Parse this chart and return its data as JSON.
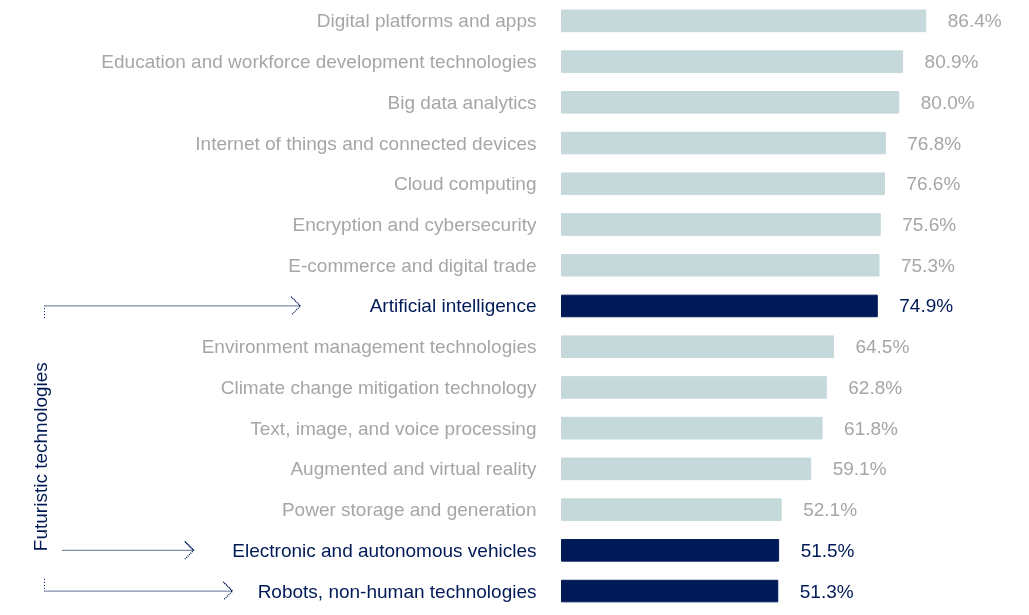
{
  "chart_data": {
    "type": "bar",
    "orientation": "horizontal",
    "value_labels": [
      "86.4%",
      "80.9%",
      "80.0%",
      "76.8%",
      "76.6%",
      "75.6%",
      "75.3%",
      "74.9%",
      "64.5%",
      "62.8%",
      "61.8%",
      "59.1%",
      "52.1%",
      "51.5%",
      "51.3%"
    ],
    "categories": [
      "Digital platforms and apps",
      "Education and workforce development technologies",
      "Big data analytics",
      "Internet of things and connected devices",
      "Cloud computing",
      "Encryption and cybersecurity",
      "E-commerce and digital trade",
      "Artificial intelligence",
      "Environment management technologies",
      "Climate change mitigation technology",
      "Text, image, and voice processing",
      "Augmented and virtual reality",
      "Power storage and generation",
      "Electronic and autonomous vehicles",
      "Robots, non-human technologies"
    ],
    "values": [
      86.4,
      80.9,
      80.0,
      76.8,
      76.6,
      75.6,
      75.3,
      74.9,
      64.5,
      62.8,
      61.8,
      59.1,
      52.1,
      51.5,
      51.3
    ],
    "colors": [
      "#c5d8da",
      "#c5d8da",
      "#c5d8da",
      "#c5d8da",
      "#c5d8da",
      "#c5d8da",
      "#c5d8da",
      "#001a57",
      "#c5d8da",
      "#c5d8da",
      "#c5d8da",
      "#c5d8da",
      "#c5d8da",
      "#001a57",
      "#001a57"
    ],
    "annotations": [
      "Futuristic technologies"
    ]
  }
}
